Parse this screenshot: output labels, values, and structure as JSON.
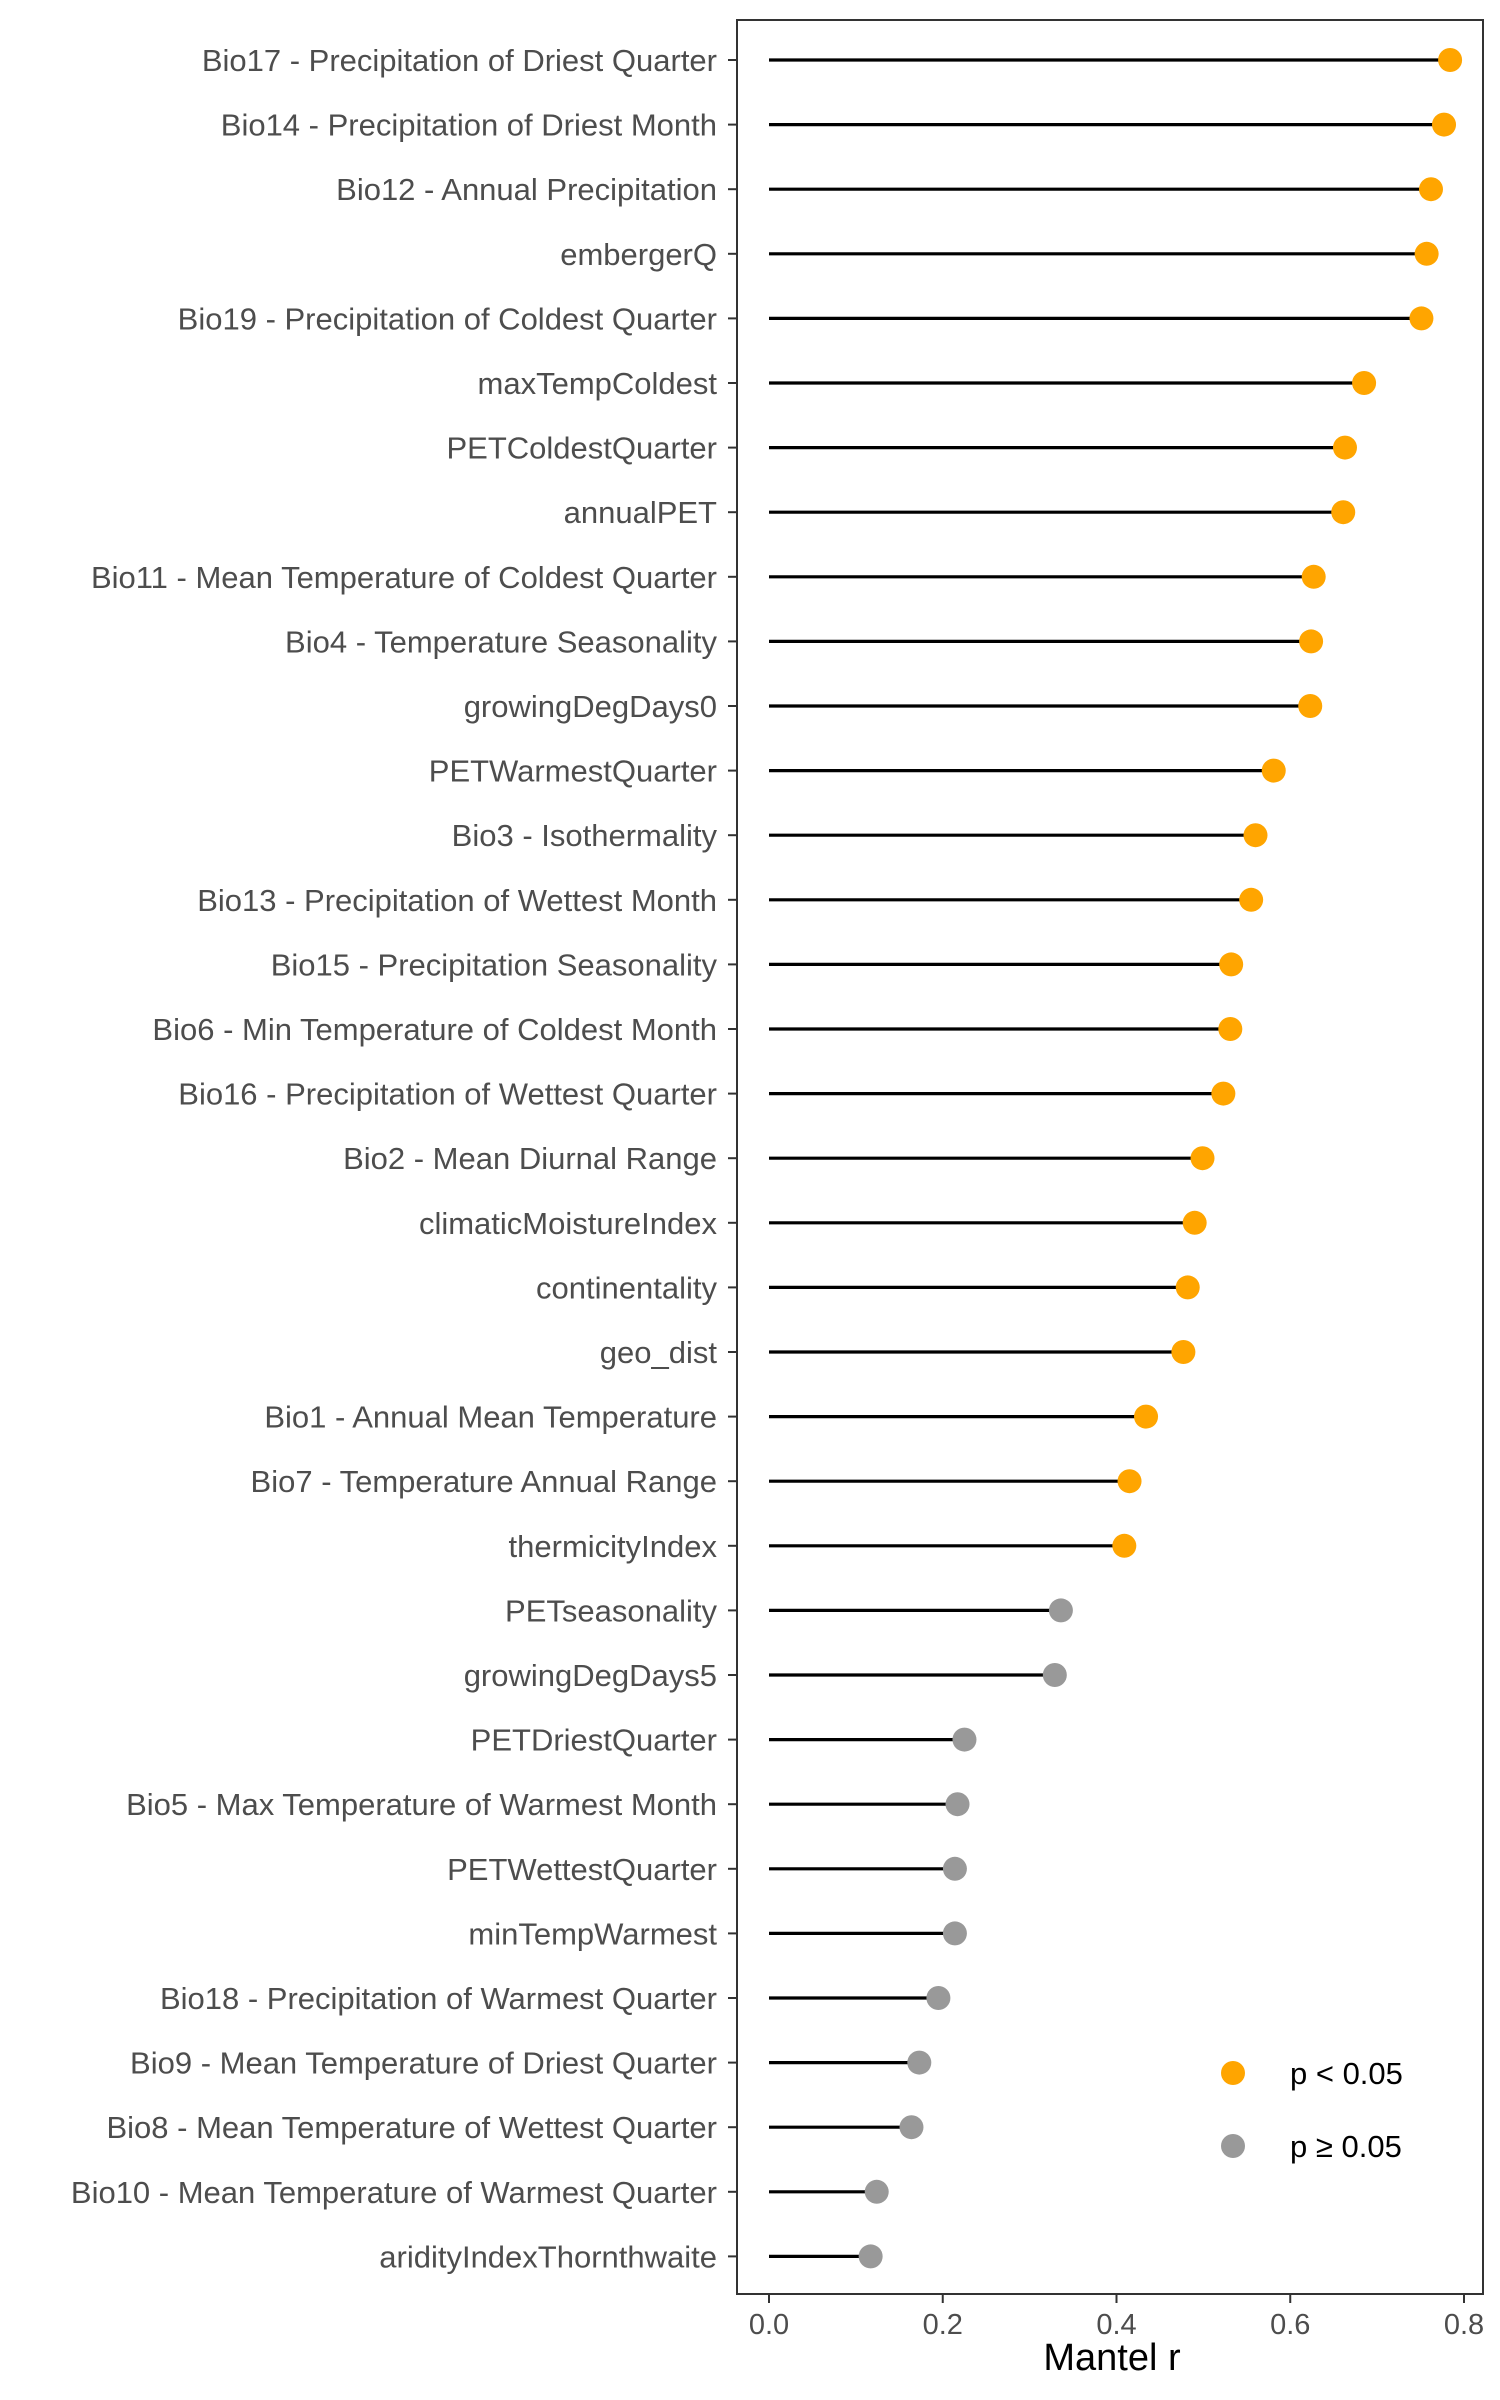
{
  "colors": {
    "significant": "#ffa500",
    "not_significant": "#999999",
    "segment": "#000000",
    "panel_border": "#333333"
  },
  "chart_data": {
    "type": "lollipop",
    "xlabel": "Mantel r",
    "ylabel": "",
    "xlim": [
      -0.05,
      0.82
    ],
    "xticks": [
      0.0,
      0.2,
      0.4,
      0.6,
      0.8
    ],
    "xtick_labels": [
      "0.0",
      "0.2",
      "0.4",
      "0.6",
      "0.8"
    ],
    "grid": false,
    "legend": {
      "placement": "bottom-right",
      "entries": [
        {
          "label": "p < 0.05",
          "group": "significant"
        },
        {
          "label": "p ≥ 0.05",
          "group": "not_significant"
        }
      ]
    },
    "points": [
      {
        "label": "Bio17 - Precipitation of Driest Quarter",
        "value": 0.784,
        "significant": true
      },
      {
        "label": "Bio14 - Precipitation of Driest Month",
        "value": 0.777,
        "significant": true
      },
      {
        "label": "Bio12 - Annual Precipitation",
        "value": 0.762,
        "significant": true
      },
      {
        "label": "embergerQ",
        "value": 0.757,
        "significant": true
      },
      {
        "label": "Bio19 - Precipitation of Coldest Quarter",
        "value": 0.751,
        "significant": true
      },
      {
        "label": "maxTempColdest",
        "value": 0.685,
        "significant": true
      },
      {
        "label": "PETColdestQuarter",
        "value": 0.663,
        "significant": true
      },
      {
        "label": "annualPET",
        "value": 0.661,
        "significant": true
      },
      {
        "label": "Bio11 - Mean Temperature of Coldest Quarter",
        "value": 0.627,
        "significant": true
      },
      {
        "label": "Bio4 - Temperature Seasonality",
        "value": 0.624,
        "significant": true
      },
      {
        "label": "growingDegDays0",
        "value": 0.623,
        "significant": true
      },
      {
        "label": "PETWarmestQuarter",
        "value": 0.581,
        "significant": true
      },
      {
        "label": "Bio3 - Isothermality",
        "value": 0.56,
        "significant": true
      },
      {
        "label": "Bio13 - Precipitation of Wettest Month",
        "value": 0.555,
        "significant": true
      },
      {
        "label": "Bio15 - Precipitation Seasonality",
        "value": 0.532,
        "significant": true
      },
      {
        "label": "Bio6 - Min Temperature of Coldest Month",
        "value": 0.531,
        "significant": true
      },
      {
        "label": "Bio16 - Precipitation of Wettest Quarter",
        "value": 0.523,
        "significant": true
      },
      {
        "label": "Bio2 - Mean Diurnal Range",
        "value": 0.499,
        "significant": true
      },
      {
        "label": "climaticMoistureIndex",
        "value": 0.49,
        "significant": true
      },
      {
        "label": "continentality",
        "value": 0.482,
        "significant": true
      },
      {
        "label": "geo_dist",
        "value": 0.477,
        "significant": true
      },
      {
        "label": "Bio1 - Annual Mean Temperature",
        "value": 0.434,
        "significant": true
      },
      {
        "label": "Bio7 - Temperature Annual Range",
        "value": 0.415,
        "significant": true
      },
      {
        "label": "thermicityIndex",
        "value": 0.409,
        "significant": true
      },
      {
        "label": "PETseasonality",
        "value": 0.336,
        "significant": false
      },
      {
        "label": "growingDegDays5",
        "value": 0.329,
        "significant": false
      },
      {
        "label": "PETDriestQuarter",
        "value": 0.225,
        "significant": false
      },
      {
        "label": "Bio5 - Max Temperature of Warmest Month",
        "value": 0.217,
        "significant": false
      },
      {
        "label": "PETWettestQuarter",
        "value": 0.214,
        "significant": false
      },
      {
        "label": "minTempWarmest",
        "value": 0.214,
        "significant": false
      },
      {
        "label": "Bio18 - Precipitation of Warmest Quarter",
        "value": 0.195,
        "significant": false
      },
      {
        "label": "Bio9 - Mean Temperature of Driest Quarter",
        "value": 0.173,
        "significant": false
      },
      {
        "label": "Bio8 - Mean Temperature of Wettest Quarter",
        "value": 0.164,
        "significant": false
      },
      {
        "label": "Bio10 - Mean Temperature of Warmest Quarter",
        "value": 0.124,
        "significant": false
      },
      {
        "label": "aridityIndexThornthwaite",
        "value": 0.117,
        "significant": false
      }
    ]
  }
}
